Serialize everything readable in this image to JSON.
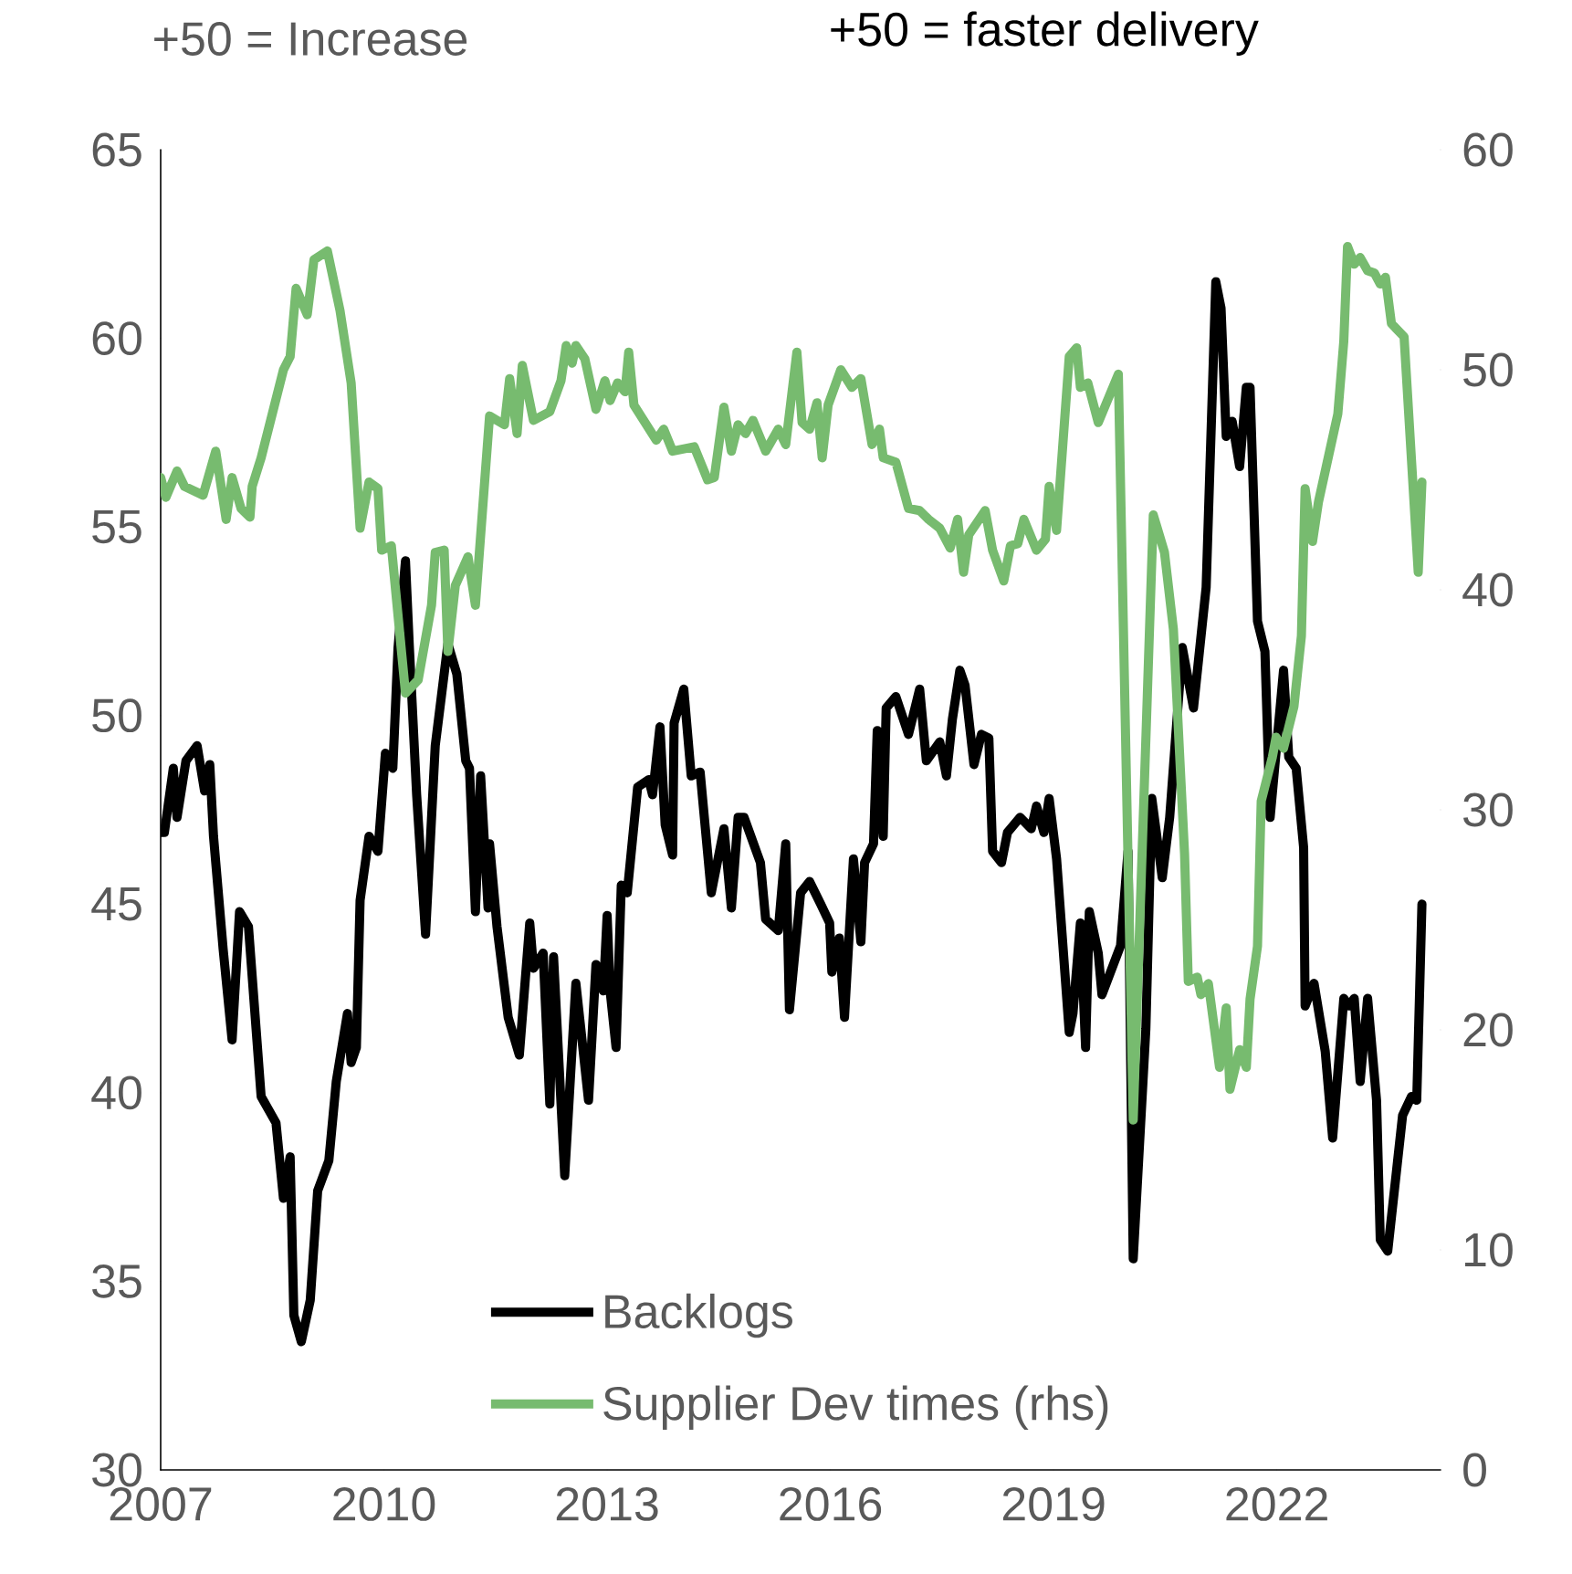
{
  "chart_data": {
    "type": "line",
    "ylabel": "+50 = Increase",
    "y2label": "+50 = faster delivery",
    "xlim": [
      2007,
      2024.2
    ],
    "xticks": [
      2007,
      2010,
      2013,
      2016,
      2019,
      2022
    ],
    "ylim": [
      30,
      65
    ],
    "yticks": [
      30,
      35,
      40,
      45,
      50,
      55,
      60,
      65
    ],
    "y2lim": [
      0,
      60
    ],
    "y2ticks": [
      0,
      10,
      20,
      30,
      40,
      50,
      60
    ],
    "legend": "bottom",
    "series": [
      {
        "name": "Backlogs",
        "color": "#000000",
        "x": [
          2007.0,
          2007.05,
          2007.17,
          2007.22,
          2007.34,
          2007.49,
          2007.59,
          2007.66,
          2007.71,
          2007.84,
          2007.96,
          2008.06,
          2008.18,
          2008.35,
          2008.55,
          2008.65,
          2008.74,
          2008.79,
          2008.89,
          2009.01,
          2009.11,
          2009.26,
          2009.36,
          2009.51,
          2009.56,
          2009.63,
          2009.68,
          2009.8,
          2009.92,
          2010.02,
          2010.12,
          2010.19,
          2010.29,
          2010.34,
          2010.44,
          2010.56,
          2010.69,
          2010.86,
          2010.98,
          2011.1,
          2011.15,
          2011.23,
          2011.3,
          2011.4,
          2011.42,
          2011.52,
          2011.67,
          2011.82,
          2011.96,
          2012.01,
          2012.14,
          2012.23,
          2012.28,
          2012.43,
          2012.58,
          2012.75,
          2012.85,
          2012.95,
          2013.0,
          2013.04,
          2013.12,
          2013.19,
          2013.27,
          2013.41,
          2013.56,
          2013.61,
          2013.71,
          2013.78,
          2013.88,
          2013.9,
          2014.03,
          2014.13,
          2014.25,
          2014.4,
          2014.57,
          2014.67,
          2014.76,
          2014.84,
          2015.06,
          2015.13,
          2015.3,
          2015.4,
          2015.45,
          2015.6,
          2015.72,
          2015.87,
          2015.99,
          2016.02,
          2016.12,
          2016.19,
          2016.31,
          2016.41,
          2016.46,
          2016.58,
          2016.63,
          2016.71,
          2016.75,
          2016.88,
          2017.05,
          2017.2,
          2017.29,
          2017.47,
          2017.56,
          2017.64,
          2017.74,
          2017.81,
          2017.93,
          2018.03,
          2018.13,
          2018.18,
          2018.3,
          2018.38,
          2018.55,
          2018.7,
          2018.77,
          2018.87,
          2018.94,
          2019.04,
          2019.21,
          2019.26,
          2019.36,
          2019.43,
          2019.48,
          2019.6,
          2019.65,
          2019.9,
          2020.0,
          2020.07,
          2020.24,
          2020.32,
          2020.46,
          2020.56,
          2020.73,
          2020.88,
          2021.05,
          2021.18,
          2021.25,
          2021.32,
          2021.4,
          2021.5,
          2021.59,
          2021.64,
          2021.74,
          2021.84,
          2021.91,
          2022.09,
          2022.16,
          2022.26,
          2022.36,
          2022.38,
          2022.5,
          2022.65,
          2022.75,
          2022.9,
          2022.97,
          2023.04,
          2023.12,
          2023.22,
          2023.34,
          2023.39,
          2023.49,
          2023.69,
          2023.81,
          2023.88,
          2023.95
        ],
        "values": [
          46.9,
          46.9,
          48.6,
          47.3,
          48.8,
          49.2,
          48.0,
          48.7,
          46.8,
          43.8,
          41.4,
          44.8,
          44.4,
          39.9,
          39.2,
          37.2,
          38.3,
          34.1,
          33.4,
          34.5,
          37.4,
          38.2,
          40.3,
          42.1,
          40.8,
          41.2,
          45.1,
          46.8,
          46.4,
          49.0,
          48.6,
          51.8,
          54.1,
          51.9,
          47.9,
          44.2,
          49.2,
          51.9,
          51.1,
          48.8,
          48.6,
          44.8,
          48.4,
          44.9,
          46.6,
          44.4,
          42.0,
          41.0,
          44.5,
          43.3,
          43.7,
          39.7,
          43.6,
          37.8,
          42.9,
          39.8,
          43.4,
          42.7,
          44.7,
          42.7,
          41.2,
          45.5,
          45.3,
          48.1,
          48.3,
          47.9,
          49.7,
          47.1,
          46.3,
          49.8,
          50.7,
          48.4,
          48.5,
          45.3,
          47.0,
          44.9,
          47.3,
          47.3,
          46.1,
          44.6,
          44.3,
          46.6,
          42.2,
          45.3,
          45.6,
          45.0,
          44.5,
          43.2,
          44.1,
          42.0,
          46.2,
          44.0,
          46.1,
          46.6,
          49.6,
          46.8,
          50.2,
          50.5,
          49.5,
          50.7,
          48.8,
          49.3,
          48.4,
          49.9,
          51.2,
          50.8,
          48.7,
          49.5,
          49.4,
          46.4,
          46.1,
          46.9,
          47.3,
          47.0,
          47.6,
          46.9,
          47.8,
          46.2,
          41.6,
          42.1,
          44.5,
          41.2,
          44.8,
          43.7,
          42.6,
          43.9,
          46.4,
          35.6,
          41.7,
          47.8,
          45.7,
          47.3,
          51.8,
          50.2,
          53.4,
          61.5,
          60.8,
          57.4,
          57.8,
          56.6,
          58.7,
          58.7,
          52.5,
          51.7,
          47.3,
          51.2,
          48.9,
          48.6,
          46.5,
          42.3,
          42.9,
          41.1,
          38.8,
          42.5,
          42.3,
          42.5,
          40.3,
          42.5,
          39.8,
          36.1,
          35.8,
          39.4,
          39.9,
          39.8,
          45.0
        ]
      },
      {
        "name": "Supplier Dev times (rhs)",
        "color": "#77bb6f",
        "axis": "y2",
        "x": [
          2007.0,
          2007.07,
          2007.22,
          2007.32,
          2007.57,
          2007.74,
          2007.88,
          2007.96,
          2008.08,
          2008.2,
          2008.23,
          2008.35,
          2008.65,
          2008.74,
          2008.82,
          2008.97,
          2009.06,
          2009.24,
          2009.41,
          2009.56,
          2009.68,
          2009.8,
          2009.92,
          2009.97,
          2010.1,
          2010.29,
          2010.46,
          2010.64,
          2010.69,
          2010.81,
          2010.86,
          2010.96,
          2011.13,
          2011.23,
          2011.42,
          2011.62,
          2011.69,
          2011.79,
          2011.86,
          2012.01,
          2012.23,
          2012.38,
          2012.45,
          2012.53,
          2012.58,
          2012.7,
          2012.85,
          2012.97,
          2013.04,
          2013.14,
          2013.24,
          2013.29,
          2013.36,
          2013.51,
          2013.66,
          2013.76,
          2013.88,
          2014.17,
          2014.35,
          2014.44,
          2014.57,
          2014.67,
          2014.76,
          2014.86,
          2014.96,
          2015.13,
          2015.3,
          2015.4,
          2015.55,
          2015.62,
          2015.72,
          2015.82,
          2015.89,
          2015.97,
          2016.14,
          2016.29,
          2016.41,
          2016.56,
          2016.66,
          2016.71,
          2016.88,
          2017.05,
          2017.2,
          2017.32,
          2017.47,
          2017.61,
          2017.71,
          2017.79,
          2017.86,
          2018.08,
          2018.18,
          2018.33,
          2018.42,
          2018.52,
          2018.6,
          2018.77,
          2018.89,
          2018.94,
          2019.04,
          2019.21,
          2019.31,
          2019.36,
          2019.46,
          2019.6,
          2019.87,
          2020.07,
          2020.34,
          2020.49,
          2020.61,
          2020.76,
          2020.81,
          2020.93,
          2020.98,
          2021.08,
          2021.23,
          2021.32,
          2021.37,
          2021.5,
          2021.59,
          2021.64,
          2021.74,
          2021.79,
          2021.94,
          2021.99,
          2022.09,
          2022.23,
          2022.33,
          2022.38,
          2022.48,
          2022.56,
          2022.82,
          2022.9,
          2022.95,
          2023.04,
          2023.12,
          2023.22,
          2023.31,
          2023.39,
          2023.46,
          2023.54,
          2023.71,
          2023.9,
          2023.95
        ],
        "values": [
          45.1,
          44.2,
          45.4,
          44.7,
          44.3,
          46.3,
          43.2,
          45.1,
          43.7,
          43.3,
          44.7,
          46.0,
          50.0,
          50.6,
          53.7,
          52.5,
          55.0,
          55.4,
          52.7,
          49.4,
          42.8,
          44.9,
          44.6,
          41.8,
          42.0,
          35.3,
          35.9,
          39.3,
          41.7,
          41.8,
          37.2,
          40.2,
          41.5,
          39.3,
          47.9,
          47.5,
          49.6,
          47.1,
          50.2,
          47.7,
          48.1,
          49.5,
          51.1,
          50.3,
          51.1,
          50.5,
          48.2,
          49.5,
          48.6,
          49.4,
          49.0,
          50.8,
          48.4,
          47.6,
          46.8,
          47.3,
          46.3,
          46.5,
          45.0,
          45.1,
          48.3,
          46.3,
          47.5,
          47.1,
          47.7,
          46.3,
          47.3,
          46.6,
          50.8,
          47.6,
          47.3,
          48.5,
          46.0,
          48.4,
          50.0,
          49.2,
          49.6,
          46.6,
          47.3,
          46.0,
          45.8,
          43.7,
          43.6,
          43.2,
          42.8,
          41.9,
          43.2,
          40.8,
          42.5,
          43.6,
          41.8,
          40.4,
          42.0,
          42.1,
          43.2,
          41.8,
          42.3,
          44.7,
          42.7,
          50.6,
          51.0,
          49.2,
          49.4,
          47.6,
          49.8,
          15.9,
          43.4,
          41.7,
          38.2,
          28.0,
          22.2,
          22.4,
          21.6,
          22.1,
          18.3,
          21.0,
          17.3,
          19.1,
          18.3,
          21.4,
          23.8,
          30.4,
          32.4,
          33.3,
          32.8,
          34.7,
          37.9,
          44.6,
          42.2,
          44.0,
          48.0,
          51.3,
          55.6,
          54.8,
          55.1,
          54.5,
          54.4,
          53.9,
          54.2,
          52.1,
          51.5,
          40.8,
          44.9
        ]
      }
    ]
  }
}
